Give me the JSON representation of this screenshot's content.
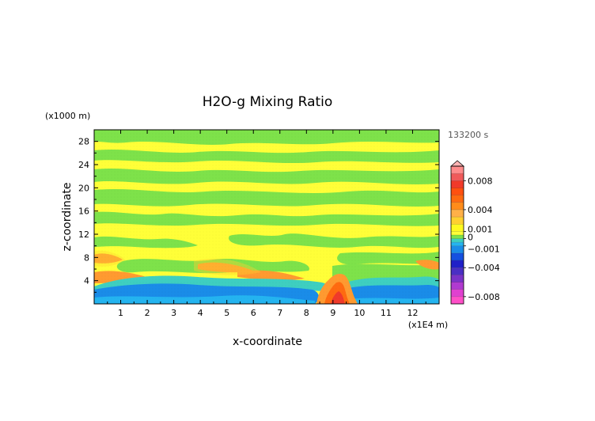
{
  "chart_data": {
    "type": "heatmap",
    "title": "H2O-g Mixing Ratio",
    "xlabel": "x-coordinate",
    "ylabel": "z-coordinate",
    "x_unit": "(x1E4 m)",
    "y_unit": "(x1000 m)",
    "time_label": "133200 s",
    "xlim": [
      0,
      13
    ],
    "ylim": [
      0,
      30
    ],
    "x_ticks": [
      "1",
      "2",
      "3",
      "4",
      "5",
      "6",
      "7",
      "8",
      "9",
      "10",
      "11",
      "12"
    ],
    "y_ticks": [
      "4",
      "8",
      "12",
      "16",
      "20",
      "24",
      "28"
    ],
    "colorbar": {
      "levels": [
        -0.009,
        -0.008,
        -0.007,
        -0.006,
        -0.005,
        -0.004,
        -0.003,
        -0.002,
        -0.001,
        -0.0005,
        0,
        0.0005,
        0.001,
        0.002,
        0.003,
        0.004,
        0.005,
        0.006,
        0.007,
        0.008,
        0.009,
        0.01
      ],
      "colors": [
        "#ff4fc8",
        "#e040d0",
        "#b03ad0",
        "#7a33c8",
        "#4a2fc4",
        "#2020c8",
        "#1550e0",
        "#1a8ce8",
        "#24b4f0",
        "#3ecfc0",
        "#7ee24a",
        "#ffff38",
        "#fffa20",
        "#ffd030",
        "#ffb048",
        "#ff8c1a",
        "#ff6a10",
        "#ff5010",
        "#f03a2a",
        "#f05a5a",
        "#ff8c8c",
        "#ffb4b4"
      ],
      "tick_labels": [
        {
          "label": "0.008",
          "value": 0.008
        },
        {
          "label": "0.004",
          "value": 0.004
        },
        {
          "label": "0.001",
          "value": 0.001
        },
        {
          "label": "0",
          "value": 0
        },
        {
          "label": "−0.001",
          "value": -0.001
        },
        {
          "label": "−0.004",
          "value": -0.004
        },
        {
          "label": "−0.008",
          "value": -0.008
        }
      ]
    },
    "bands": [
      {
        "name": "bg",
        "value": 0.0003
      },
      {
        "name": "lowdry",
        "value": -0.0035
      },
      {
        "name": "tealbelt",
        "value": -0.0012
      },
      {
        "name": "orangelayer",
        "value": 0.0035
      },
      {
        "name": "plume",
        "value": 0.004
      }
    ]
  }
}
